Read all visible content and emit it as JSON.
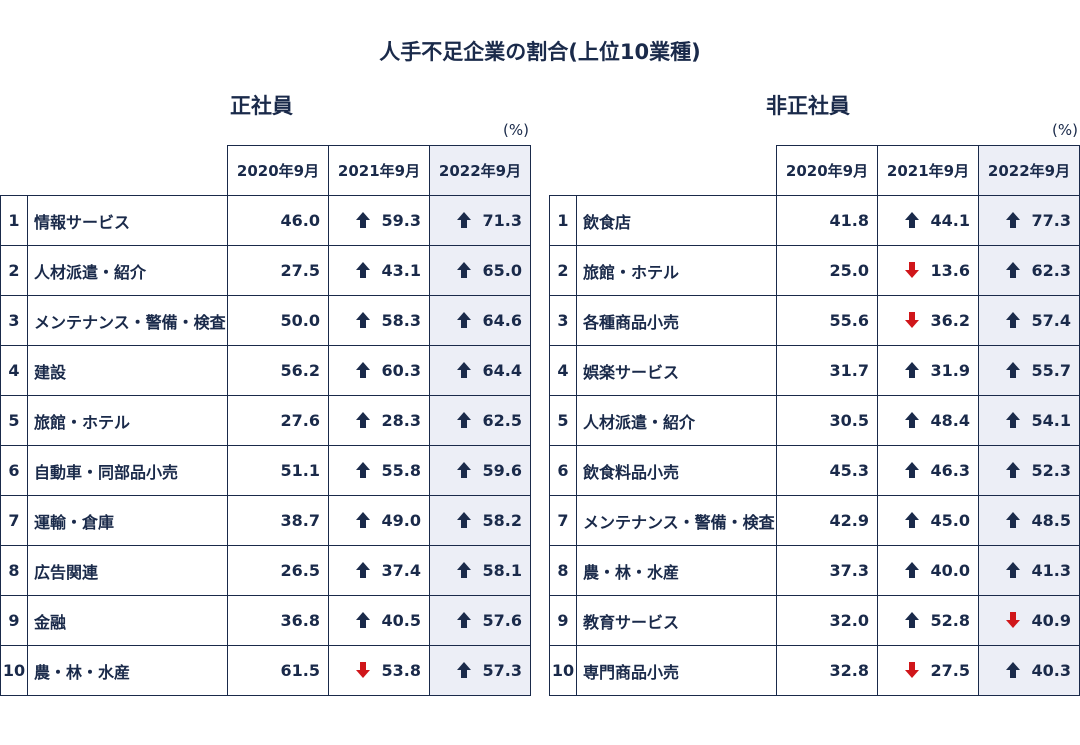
{
  "title": "人手不足企業の割合(上位10業種)",
  "colors": {
    "up_arrow": "#1a2a4a",
    "down_arrow": "#d0161a",
    "header_shade": "#eceef6",
    "text": "#1a2a4a"
  },
  "left": {
    "title": "正社員",
    "unit": "(%)",
    "headers": [
      "2020年9月",
      "2021年9月",
      "2022年9月"
    ],
    "rows": [
      {
        "rank": "1",
        "industry": "情報サービス",
        "v2020": "46.0",
        "v2021": "59.3",
        "t2021": "up",
        "v2022": "71.3",
        "t2022": "up"
      },
      {
        "rank": "2",
        "industry": "人材派遣・紹介",
        "v2020": "27.5",
        "v2021": "43.1",
        "t2021": "up",
        "v2022": "65.0",
        "t2022": "up"
      },
      {
        "rank": "3",
        "industry": "メンテナンス・警備・検査",
        "v2020": "50.0",
        "v2021": "58.3",
        "t2021": "up",
        "v2022": "64.6",
        "t2022": "up"
      },
      {
        "rank": "4",
        "industry": "建設",
        "v2020": "56.2",
        "v2021": "60.3",
        "t2021": "up",
        "v2022": "64.4",
        "t2022": "up"
      },
      {
        "rank": "5",
        "industry": "旅館・ホテル",
        "v2020": "27.6",
        "v2021": "28.3",
        "t2021": "up",
        "v2022": "62.5",
        "t2022": "up"
      },
      {
        "rank": "6",
        "industry": "自動車・同部品小売",
        "v2020": "51.1",
        "v2021": "55.8",
        "t2021": "up",
        "v2022": "59.6",
        "t2022": "up"
      },
      {
        "rank": "7",
        "industry": "運輸・倉庫",
        "v2020": "38.7",
        "v2021": "49.0",
        "t2021": "up",
        "v2022": "58.2",
        "t2022": "up"
      },
      {
        "rank": "8",
        "industry": "広告関連",
        "v2020": "26.5",
        "v2021": "37.4",
        "t2021": "up",
        "v2022": "58.1",
        "t2022": "up"
      },
      {
        "rank": "9",
        "industry": "金融",
        "v2020": "36.8",
        "v2021": "40.5",
        "t2021": "up",
        "v2022": "57.6",
        "t2022": "up"
      },
      {
        "rank": "10",
        "industry": "農・林・水産",
        "v2020": "61.5",
        "v2021": "53.8",
        "t2021": "down",
        "v2022": "57.3",
        "t2022": "up"
      }
    ]
  },
  "right": {
    "title": "非正社員",
    "unit": "(%)",
    "headers": [
      "2020年9月",
      "2021年9月",
      "2022年9月"
    ],
    "rows": [
      {
        "rank": "1",
        "industry": "飲食店",
        "v2020": "41.8",
        "v2021": "44.1",
        "t2021": "up",
        "v2022": "77.3",
        "t2022": "up"
      },
      {
        "rank": "2",
        "industry": "旅館・ホテル",
        "v2020": "25.0",
        "v2021": "13.6",
        "t2021": "down",
        "v2022": "62.3",
        "t2022": "up"
      },
      {
        "rank": "3",
        "industry": "各種商品小売",
        "v2020": "55.6",
        "v2021": "36.2",
        "t2021": "down",
        "v2022": "57.4",
        "t2022": "up"
      },
      {
        "rank": "4",
        "industry": "娯楽サービス",
        "v2020": "31.7",
        "v2021": "31.9",
        "t2021": "up",
        "v2022": "55.7",
        "t2022": "up"
      },
      {
        "rank": "5",
        "industry": "人材派遣・紹介",
        "v2020": "30.5",
        "v2021": "48.4",
        "t2021": "up",
        "v2022": "54.1",
        "t2022": "up"
      },
      {
        "rank": "6",
        "industry": "飲食料品小売",
        "v2020": "45.3",
        "v2021": "46.3",
        "t2021": "up",
        "v2022": "52.3",
        "t2022": "up"
      },
      {
        "rank": "7",
        "industry": "メンテナンス・警備・検査",
        "v2020": "42.9",
        "v2021": "45.0",
        "t2021": "up",
        "v2022": "48.5",
        "t2022": "up"
      },
      {
        "rank": "8",
        "industry": "農・林・水産",
        "v2020": "37.3",
        "v2021": "40.0",
        "t2021": "up",
        "v2022": "41.3",
        "t2022": "up"
      },
      {
        "rank": "9",
        "industry": "教育サービス",
        "v2020": "32.0",
        "v2021": "52.8",
        "t2021": "up",
        "v2022": "40.9",
        "t2022": "down"
      },
      {
        "rank": "10",
        "industry": "専門商品小売",
        "v2020": "32.8",
        "v2021": "27.5",
        "t2021": "down",
        "v2022": "40.3",
        "t2022": "up"
      }
    ]
  }
}
